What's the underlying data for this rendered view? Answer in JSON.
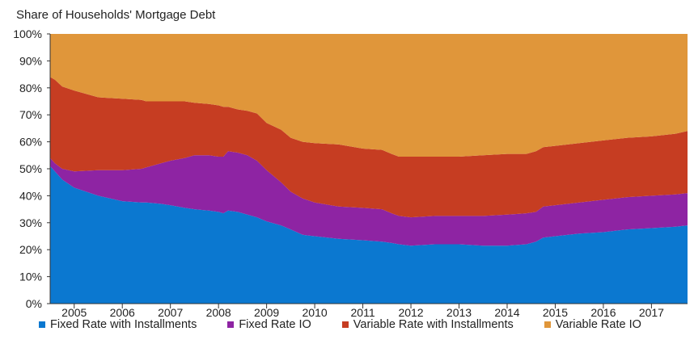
{
  "chart_data": {
    "type": "area",
    "stacked": true,
    "title": "Share of Households' Mortgage Debt",
    "xlabel": "",
    "ylabel": "",
    "x_start": 2004.5,
    "x_end": 2017.75,
    "ylim": [
      0,
      100
    ],
    "yticks": [
      "0%",
      "10%",
      "20%",
      "30%",
      "40%",
      "50%",
      "60%",
      "70%",
      "80%",
      "90%",
      "100%"
    ],
    "categories": [
      "2005",
      "2006",
      "2007",
      "2008",
      "2009",
      "2010",
      "2011",
      "2012",
      "2013",
      "2014",
      "2015",
      "2016",
      "2017"
    ],
    "grid": false,
    "legend_position": "bottom",
    "x": [
      2004.5,
      2004.6,
      2004.75,
      2005.0,
      2005.5,
      2006.0,
      2006.4,
      2006.5,
      2006.8,
      2007.0,
      2007.3,
      2007.5,
      2007.8,
      2008.0,
      2008.1,
      2008.2,
      2008.4,
      2008.6,
      2008.8,
      2009.0,
      2009.3,
      2009.5,
      2009.75,
      2010.0,
      2010.5,
      2011.0,
      2011.4,
      2011.6,
      2011.75,
      2012.0,
      2012.5,
      2013.0,
      2013.5,
      2014.0,
      2014.4,
      2014.6,
      2014.75,
      2015.0,
      2015.5,
      2016.0,
      2016.5,
      2017.0,
      2017.5,
      2017.75
    ],
    "series": [
      {
        "name": "Fixed Rate with Installments",
        "color": "#0b78d0",
        "values": [
          51,
          49,
          46,
          43,
          40,
          38,
          37.5,
          37.5,
          37,
          36.5,
          35.5,
          35,
          34.5,
          34,
          33.5,
          34.5,
          34,
          33,
          32,
          30.5,
          29,
          27.5,
          25.5,
          25,
          24,
          23.5,
          23,
          22.5,
          22,
          21.5,
          22,
          22,
          21.5,
          21.5,
          22,
          23,
          24.5,
          25,
          26,
          26.5,
          27.5,
          28,
          28.5,
          29
        ]
      },
      {
        "name": "Fixed Rate IO",
        "color": "#8e24a3",
        "values": [
          3,
          3,
          4,
          6,
          9.5,
          11.5,
          12.5,
          13,
          15,
          16.5,
          18.5,
          20,
          20.5,
          20.5,
          21,
          22,
          22,
          22,
          21,
          19,
          16,
          14,
          13.5,
          12.5,
          12,
          12,
          12,
          11,
          10.5,
          10.5,
          10.5,
          10.5,
          11,
          11.5,
          11.5,
          11,
          11.5,
          11.5,
          11.5,
          12,
          12,
          12,
          12,
          12
        ]
      },
      {
        "name": "Variable Rate with Installments",
        "color": "#c63d22",
        "values": [
          30,
          31,
          30.5,
          30,
          27,
          26.5,
          25.5,
          24.5,
          23,
          22,
          21,
          19.5,
          19,
          19,
          18.5,
          16.5,
          16,
          16.5,
          17.5,
          17.5,
          19.5,
          20,
          21,
          22,
          23,
          22,
          22,
          22,
          22,
          22.5,
          22,
          22,
          22.5,
          22.5,
          22,
          22.5,
          22,
          22,
          22,
          22,
          22,
          22,
          22.5,
          23
        ]
      },
      {
        "name": "Variable Rate IO",
        "color": "#e0963a",
        "values": [
          16,
          17,
          19.5,
          21,
          23.5,
          24,
          24.5,
          25,
          25,
          25,
          25,
          25.5,
          26,
          26.5,
          27,
          27,
          28,
          28.5,
          29.5,
          33,
          35.5,
          38.5,
          40,
          40.5,
          41,
          42.5,
          43,
          44.5,
          45.5,
          45.5,
          45.5,
          45.5,
          45,
          44.5,
          44.5,
          43.5,
          42,
          41.5,
          40.5,
          39.5,
          38.5,
          38,
          37,
          36
        ]
      }
    ]
  }
}
